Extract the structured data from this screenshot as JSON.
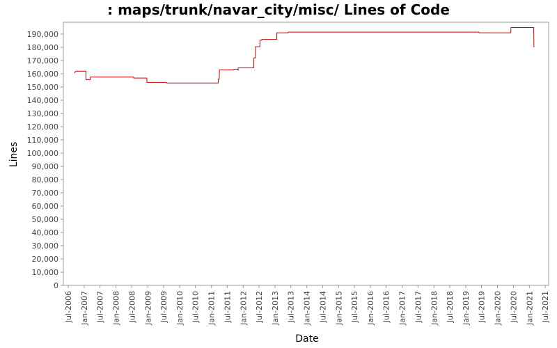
{
  "chart_data": {
    "type": "line",
    "title": ": maps/trunk/navar_city/misc/ Lines of Code",
    "xlabel": "Date",
    "ylabel": "Lines",
    "ylim": [
      0,
      196000
    ],
    "xlim": [
      "2006-06-15",
      "2021-07-01"
    ],
    "y_ticks": [
      "0",
      "10,000",
      "20,000",
      "30,000",
      "40,000",
      "50,000",
      "60,000",
      "70,000",
      "80,000",
      "90,000",
      "100,000",
      "110,000",
      "120,000",
      "130,000",
      "140,000",
      "150,000",
      "160,000",
      "170,000",
      "180,000",
      "190,000"
    ],
    "x_ticks": [
      {
        "label": "Jul-2006",
        "date": "2006-07-01"
      },
      {
        "label": "Jan-2007",
        "date": "2007-01-01"
      },
      {
        "label": "Jul-2007",
        "date": "2007-07-01"
      },
      {
        "label": "Jan-2008",
        "date": "2008-01-01"
      },
      {
        "label": "Jul-2008",
        "date": "2008-07-01"
      },
      {
        "label": "Jan-2009",
        "date": "2009-01-01"
      },
      {
        "label": "Jul-2009",
        "date": "2009-07-01"
      },
      {
        "label": "Jan-2010",
        "date": "2010-01-01"
      },
      {
        "label": "Jul-2010",
        "date": "2010-07-01"
      },
      {
        "label": "Jan-2011",
        "date": "2011-01-01"
      },
      {
        "label": "Jul-2011",
        "date": "2011-07-01"
      },
      {
        "label": "Jan-2012",
        "date": "2012-01-01"
      },
      {
        "label": "Jul-2012",
        "date": "2012-07-01"
      },
      {
        "label": "Jan-2013",
        "date": "2013-01-01"
      },
      {
        "label": "Jul-2013",
        "date": "2013-07-01"
      },
      {
        "label": "Jan-2014",
        "date": "2014-01-01"
      },
      {
        "label": "Jul-2014",
        "date": "2014-07-01"
      },
      {
        "label": "Jan-2015",
        "date": "2015-01-01"
      },
      {
        "label": "Jul-2015",
        "date": "2015-07-01"
      },
      {
        "label": "Jan-2016",
        "date": "2016-01-01"
      },
      {
        "label": "Jul-2016",
        "date": "2016-07-01"
      },
      {
        "label": "Jan-2017",
        "date": "2017-01-01"
      },
      {
        "label": "Jul-2017",
        "date": "2017-07-01"
      },
      {
        "label": "Jan-2018",
        "date": "2018-01-01"
      },
      {
        "label": "Jul-2018",
        "date": "2018-07-01"
      },
      {
        "label": "Jan-2019",
        "date": "2019-01-01"
      },
      {
        "label": "Jul-2019",
        "date": "2019-07-01"
      },
      {
        "label": "Jan-2020",
        "date": "2020-01-01"
      },
      {
        "label": "Jul-2020",
        "date": "2020-07-01"
      },
      {
        "label": "Jan-2021",
        "date": "2021-01-01"
      },
      {
        "label": "Jul-2021",
        "date": "2021-07-01"
      }
    ],
    "grid": false,
    "series": [
      {
        "color": "#cc0000",
        "points": [
          [
            "2006-09-10",
            160500
          ],
          [
            "2006-09-25",
            162000
          ],
          [
            "2007-01-20",
            162000
          ],
          [
            "2007-01-22",
            155500
          ],
          [
            "2007-03-10",
            155500
          ],
          [
            "2007-03-12",
            157500
          ],
          [
            "2008-07-20",
            157500
          ],
          [
            "2008-07-22",
            156800
          ],
          [
            "2008-12-20",
            156800
          ],
          [
            "2008-12-22",
            153500
          ],
          [
            "2009-08-01",
            153500
          ],
          [
            "2009-08-03",
            153000
          ],
          [
            "2011-03-20",
            153000
          ],
          [
            "2011-03-22",
            156000
          ],
          [
            "2011-04-01",
            156000
          ],
          [
            "2011-04-03",
            163000
          ],
          [
            "2011-09-15",
            163000
          ],
          [
            "2011-09-17",
            163500
          ],
          [
            "2011-11-01",
            163500
          ],
          [
            "2011-11-03",
            162500
          ],
          [
            "2011-11-05",
            164500
          ],
          [
            "2012-05-01",
            164500
          ],
          [
            "2012-05-03",
            172000
          ],
          [
            "2012-05-20",
            172000
          ],
          [
            "2012-05-22",
            180500
          ],
          [
            "2012-07-10",
            180500
          ],
          [
            "2012-07-12",
            185500
          ],
          [
            "2012-08-01",
            185500
          ],
          [
            "2012-08-03",
            186000
          ],
          [
            "2013-01-20",
            186000
          ],
          [
            "2013-01-22",
            191000
          ],
          [
            "2013-06-01",
            191000
          ],
          [
            "2013-06-03",
            191500
          ],
          [
            "2019-06-01",
            191500
          ],
          [
            "2019-06-03",
            191000
          ],
          [
            "2020-06-01",
            191000
          ],
          [
            "2020-06-03",
            195000
          ],
          [
            "2021-02-20",
            195000
          ],
          [
            "2021-02-22",
            180000
          ]
        ]
      }
    ]
  }
}
